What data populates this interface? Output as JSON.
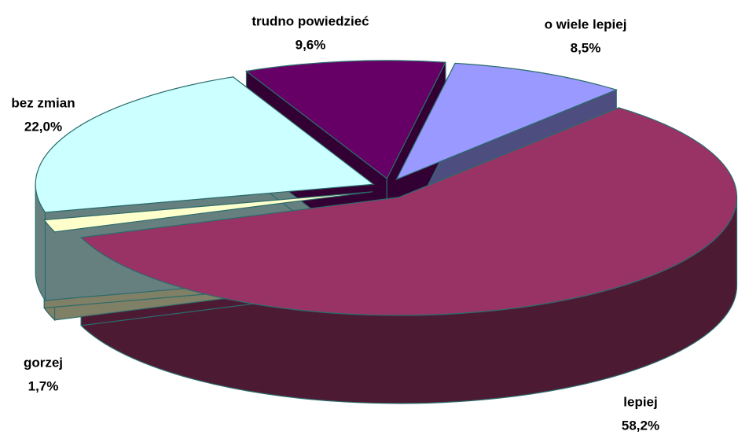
{
  "chart_data": {
    "type": "pie",
    "categories": [
      "o wiele lepiej",
      "lepiej",
      "gorzej",
      "bez zmian",
      "trudno powiedzieć"
    ],
    "values": [
      8.5,
      58.2,
      1.7,
      22.0,
      9.6
    ],
    "value_labels": [
      "8,5%",
      "58,2%",
      "1,7%",
      "22,0%",
      "9,6%"
    ],
    "colors": [
      "#9999ff",
      "#993366",
      "#ffffcc",
      "#ccffff",
      "#660066"
    ]
  }
}
